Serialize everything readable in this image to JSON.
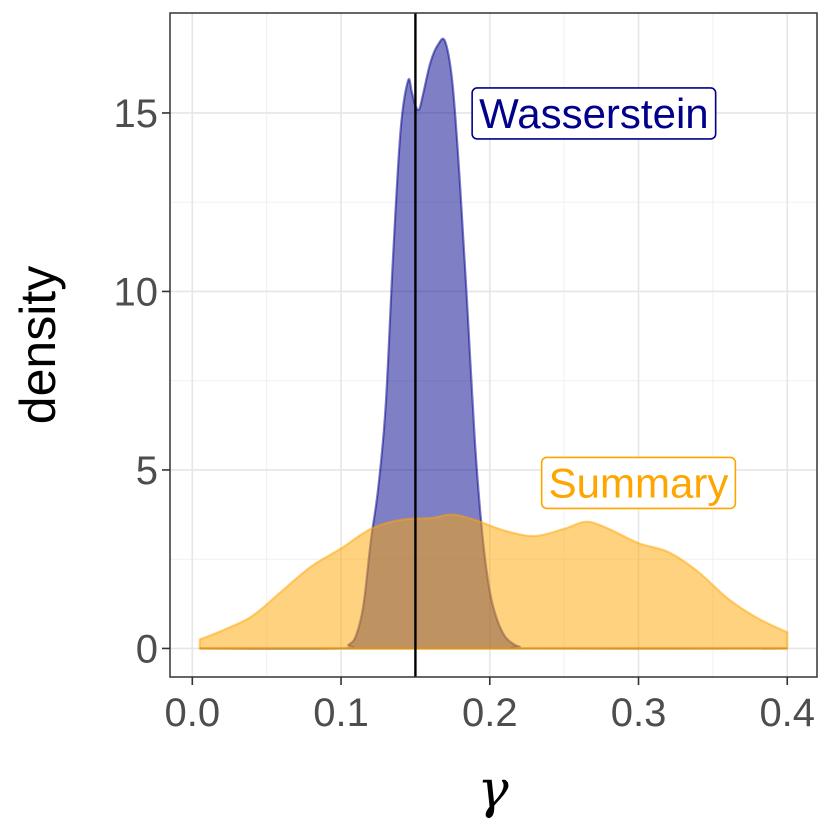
{
  "chart_data": {
    "type": "area",
    "title": "",
    "xlabel": "γ",
    "ylabel": "density",
    "xlim": [
      -0.015,
      0.42
    ],
    "ylim": [
      -0.8,
      17.8
    ],
    "x_ticks": [
      0.0,
      0.1,
      0.2,
      0.3,
      0.4
    ],
    "x_tick_labels": [
      "0.0",
      "0.1",
      "0.2",
      "0.3",
      "0.4"
    ],
    "y_ticks": [
      0,
      5,
      10,
      15
    ],
    "y_tick_labels": [
      "0",
      "5",
      "10",
      "15"
    ],
    "grid": true,
    "vline": 0.15,
    "series": [
      {
        "name": "Wasserstein",
        "color": "#00008B",
        "fill": "#00008B",
        "x": [
          0.005,
          0.1,
          0.105,
          0.11,
          0.115,
          0.12,
          0.125,
          0.13,
          0.135,
          0.14,
          0.145,
          0.1475,
          0.15,
          0.1525,
          0.155,
          0.16,
          0.165,
          0.17,
          0.175,
          0.18,
          0.185,
          0.19,
          0.195,
          0.2,
          0.205,
          0.21,
          0.215,
          0.22,
          0.23,
          0.4
        ],
        "y": [
          0,
          0,
          0.1,
          0.35,
          1.2,
          3.0,
          4.5,
          6.8,
          11.0,
          14.5,
          15.9,
          15.6,
          15.2,
          15.1,
          15.5,
          16.4,
          16.9,
          17.0,
          15.8,
          13.0,
          9.5,
          5.8,
          3.2,
          1.6,
          0.8,
          0.35,
          0.15,
          0.05,
          0,
          0
        ]
      },
      {
        "name": "Summary",
        "color": "#FFA500",
        "fill": "#FFA500",
        "x": [
          0.005,
          0.02,
          0.04,
          0.06,
          0.08,
          0.1,
          0.12,
          0.14,
          0.16,
          0.175,
          0.19,
          0.21,
          0.23,
          0.25,
          0.265,
          0.28,
          0.3,
          0.32,
          0.34,
          0.36,
          0.38,
          0.4
        ],
        "y": [
          0.25,
          0.5,
          0.9,
          1.6,
          2.3,
          2.8,
          3.35,
          3.6,
          3.65,
          3.75,
          3.6,
          3.3,
          3.15,
          3.35,
          3.55,
          3.35,
          2.95,
          2.7,
          2.15,
          1.4,
          0.85,
          0.45
        ]
      }
    ],
    "annotations": [
      {
        "text": "Wasserstein",
        "x": 0.27,
        "y": 15.0,
        "color": "#00008B"
      },
      {
        "text": "Summary",
        "x": 0.3,
        "y": 4.65,
        "color": "#FFA500"
      }
    ]
  }
}
